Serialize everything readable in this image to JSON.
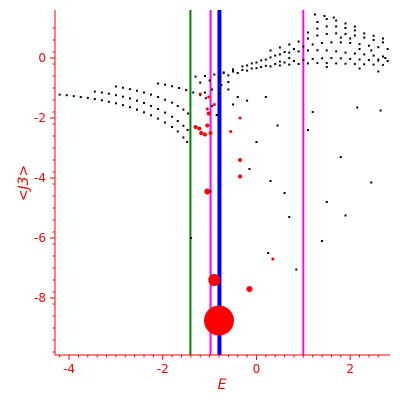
{
  "chart_data": {
    "type": "scatter",
    "xlabel": "E",
    "ylabel": "<J3>",
    "xlim": [
      -4.3,
      2.85
    ],
    "ylim": [
      -9.9,
      1.6
    ],
    "x_ticks": [
      -4,
      -2,
      0,
      2
    ],
    "x_tick_labels": [
      "-4",
      "-2",
      "0",
      "2"
    ],
    "y_ticks": [
      0,
      -2,
      -4,
      -6,
      -8
    ],
    "y_tick_labels": [
      "0",
      "-2",
      "-4",
      "-6",
      "-8"
    ],
    "grid": false,
    "colors": {
      "axis": "#ff0000",
      "points": "#000000",
      "highlight": "#ff0000",
      "green_line": "#008000",
      "magenta_line": "#ff00ff",
      "blue_line": "#0000ff"
    },
    "vertical_lines": [
      {
        "x": -1.41,
        "color": "#008000",
        "width": 2
      },
      {
        "x": -0.98,
        "color": "#ff00ff",
        "width": 2
      },
      {
        "x": -0.79,
        "color": "#0000ff",
        "width": 4
      },
      {
        "x": 1.0,
        "color": "#ff00ff",
        "width": 2
      }
    ],
    "black_points": [
      [
        -4.2,
        -1.22
      ],
      [
        -4.05,
        -1.24
      ],
      [
        -3.9,
        -1.27
      ],
      [
        -3.75,
        -1.3
      ],
      [
        -3.6,
        -1.33
      ],
      [
        -3.45,
        -1.37
      ],
      [
        -3.3,
        -1.41
      ],
      [
        -3.15,
        -1.46
      ],
      [
        -3.0,
        -1.51
      ],
      [
        -2.85,
        -1.57
      ],
      [
        -2.7,
        -1.64
      ],
      [
        -2.55,
        -1.72
      ],
      [
        -2.4,
        -1.81
      ],
      [
        -2.25,
        -1.91
      ],
      [
        -2.1,
        -2.02
      ],
      [
        -1.95,
        -2.15
      ],
      [
        -1.8,
        -2.3
      ],
      [
        -1.68,
        -2.45
      ],
      [
        -1.56,
        -2.65
      ],
      [
        -1.48,
        -2.8
      ],
      [
        -3.45,
        -1.12
      ],
      [
        -3.3,
        -1.15
      ],
      [
        -3.15,
        -1.19
      ],
      [
        -3.0,
        -1.24
      ],
      [
        -2.85,
        -1.29
      ],
      [
        -2.7,
        -1.35
      ],
      [
        -2.55,
        -1.42
      ],
      [
        -2.4,
        -1.5
      ],
      [
        -2.25,
        -1.6
      ],
      [
        -2.1,
        -1.7
      ],
      [
        -1.95,
        -1.82
      ],
      [
        -1.8,
        -1.96
      ],
      [
        -1.68,
        -2.1
      ],
      [
        -1.56,
        -2.26
      ],
      [
        -1.47,
        -2.4
      ],
      [
        -3.0,
        -0.95
      ],
      [
        -2.85,
        -0.99
      ],
      [
        -2.7,
        -1.04
      ],
      [
        -2.55,
        -1.09
      ],
      [
        -2.4,
        -1.15
      ],
      [
        -2.25,
        -1.22
      ],
      [
        -2.1,
        -1.3
      ],
      [
        -1.95,
        -1.39
      ],
      [
        -1.8,
        -1.49
      ],
      [
        -1.68,
        -1.6
      ],
      [
        -1.56,
        -1.72
      ],
      [
        -1.46,
        -1.85
      ],
      [
        -2.1,
        -0.85
      ],
      [
        -1.95,
        -0.89
      ],
      [
        -1.8,
        -0.94
      ],
      [
        -1.65,
        -1.0
      ],
      [
        -1.5,
        -1.07
      ],
      [
        -1.35,
        -1.15
      ],
      [
        -1.2,
        -1.24
      ],
      [
        -1.08,
        -1.34
      ],
      [
        -1.3,
        -0.62
      ],
      [
        -1.1,
        -0.6
      ],
      [
        -0.9,
        -0.55
      ],
      [
        -0.7,
        -0.5
      ],
      [
        -0.5,
        -0.45
      ],
      [
        -0.3,
        -0.4
      ],
      [
        -0.1,
        -0.35
      ],
      [
        0.1,
        -0.3
      ],
      [
        0.3,
        -0.28
      ],
      [
        0.5,
        -0.25
      ],
      [
        0.7,
        -0.22
      ],
      [
        0.9,
        -0.2
      ],
      [
        1.1,
        -0.18
      ],
      [
        1.3,
        -0.17
      ],
      [
        1.5,
        -0.17
      ],
      [
        1.7,
        -0.18
      ],
      [
        1.9,
        -0.19
      ],
      [
        2.1,
        -0.2
      ],
      [
        2.3,
        -0.21
      ],
      [
        2.5,
        -0.22
      ],
      [
        2.7,
        -0.23
      ],
      [
        -1.2,
        -0.82
      ],
      [
        -1.0,
        -0.75
      ],
      [
        -0.8,
        -0.66
      ],
      [
        -0.6,
        -0.58
      ],
      [
        -0.4,
        -0.5
      ],
      [
        -0.2,
        -0.42
      ],
      [
        0.0,
        -0.34
      ],
      [
        0.2,
        -0.26
      ],
      [
        0.4,
        -0.2
      ],
      [
        0.6,
        -0.15
      ],
      [
        0.8,
        -0.1
      ],
      [
        1.0,
        -0.06
      ],
      [
        1.2,
        -0.03
      ],
      [
        1.4,
        -0.01
      ],
      [
        1.6,
        0.0
      ],
      [
        1.8,
        -0.01
      ],
      [
        2.0,
        -0.03
      ],
      [
        2.2,
        -0.05
      ],
      [
        2.4,
        -0.07
      ],
      [
        2.6,
        -0.09
      ],
      [
        2.8,
        -0.1
      ],
      [
        -0.7,
        -0.48
      ],
      [
        -0.5,
        -0.38
      ],
      [
        -0.3,
        -0.28
      ],
      [
        -0.1,
        -0.18
      ],
      [
        0.1,
        -0.08
      ],
      [
        0.3,
        0.02
      ],
      [
        0.5,
        0.12
      ],
      [
        0.7,
        0.18
      ],
      [
        0.9,
        0.22
      ],
      [
        1.1,
        0.25
      ],
      [
        1.3,
        0.26
      ],
      [
        1.5,
        0.25
      ],
      [
        1.7,
        0.22
      ],
      [
        1.9,
        0.18
      ],
      [
        2.1,
        0.15
      ],
      [
        2.3,
        0.12
      ],
      [
        2.5,
        0.08
      ],
      [
        2.7,
        0.05
      ],
      [
        0.2,
        -0.05
      ],
      [
        0.4,
        0.08
      ],
      [
        0.6,
        0.2
      ],
      [
        0.8,
        0.3
      ],
      [
        1.0,
        0.38
      ],
      [
        1.2,
        0.45
      ],
      [
        1.4,
        0.5
      ],
      [
        1.6,
        0.52
      ],
      [
        1.8,
        0.52
      ],
      [
        2.0,
        0.5
      ],
      [
        2.2,
        0.46
      ],
      [
        2.4,
        0.41
      ],
      [
        2.6,
        0.36
      ],
      [
        2.8,
        0.3
      ],
      [
        0.9,
        0.55
      ],
      [
        1.1,
        0.65
      ],
      [
        1.3,
        0.75
      ],
      [
        1.5,
        0.8
      ],
      [
        1.7,
        0.82
      ],
      [
        1.9,
        0.8
      ],
      [
        2.1,
        0.75
      ],
      [
        2.3,
        0.68
      ],
      [
        2.5,
        0.6
      ],
      [
        2.7,
        0.52
      ],
      [
        1.1,
        0.85
      ],
      [
        1.3,
        0.98
      ],
      [
        1.5,
        1.05
      ],
      [
        1.7,
        1.05
      ],
      [
        1.9,
        1.0
      ],
      [
        2.1,
        0.92
      ],
      [
        2.3,
        0.82
      ],
      [
        2.5,
        0.74
      ],
      [
        2.7,
        0.65
      ],
      [
        1.3,
        1.2
      ],
      [
        1.5,
        1.3
      ],
      [
        1.7,
        1.25
      ],
      [
        1.9,
        1.15
      ],
      [
        2.1,
        1.05
      ],
      [
        1.25,
        1.45
      ],
      [
        1.45,
        1.4
      ],
      [
        1.65,
        1.35
      ],
      [
        0.5,
        0.35
      ],
      [
        0.7,
        0.45
      ],
      [
        0.3,
        0.25
      ],
      [
        0.0,
        -0.15
      ],
      [
        -0.2,
        -0.25
      ],
      [
        2.75,
        0.0
      ],
      [
        2.6,
        -0.05
      ],
      [
        2.45,
        0.25
      ],
      [
        2.2,
        0.3
      ],
      [
        2.0,
        0.65
      ],
      [
        1.8,
        0.68
      ],
      [
        0.7,
        0.0
      ],
      [
        0.5,
        -0.12
      ],
      [
        1.5,
        -0.3
      ],
      [
        2.2,
        -0.35
      ],
      [
        2.6,
        -0.45
      ],
      [
        -0.75,
        -0.9
      ],
      [
        -0.6,
        -1.05
      ],
      [
        -0.4,
        -1.3
      ],
      [
        -0.6,
        -0.8
      ],
      [
        2.65,
        -1.75
      ],
      [
        2.15,
        -1.65
      ],
      [
        1.2,
        -1.8
      ],
      [
        0.2,
        -1.3
      ],
      [
        -0.2,
        -1.42
      ],
      [
        -0.5,
        -1.55
      ],
      [
        0.45,
        -2.25
      ],
      [
        1.1,
        -2.4
      ],
      [
        0.0,
        -2.8
      ],
      [
        -0.15,
        -3.7
      ],
      [
        1.8,
        -3.3
      ],
      [
        0.3,
        -4.1
      ],
      [
        0.6,
        -4.5
      ],
      [
        2.45,
        -4.15
      ],
      [
        1.5,
        -4.8
      ],
      [
        1.9,
        -5.25
      ],
      [
        0.7,
        -5.3
      ],
      [
        1.4,
        -6.1
      ],
      [
        0.25,
        -6.5
      ],
      [
        0.85,
        -7.05
      ],
      [
        -0.98,
        -4.45
      ],
      [
        -1.4,
        -6.0
      ],
      [
        -0.95,
        -1.6
      ],
      [
        -0.85,
        -1.9
      ],
      [
        -1.1,
        -1.15
      ],
      [
        -0.95,
        -1.05
      ],
      [
        -0.8,
        -1.2
      ]
    ],
    "red_points": [
      {
        "x": -1.2,
        "y": -1.2,
        "r": 1.5
      },
      {
        "x": -1.02,
        "y": -1.3,
        "r": 1.5
      },
      {
        "x": -1.05,
        "y": -1.7,
        "r": 1.5
      },
      {
        "x": -0.9,
        "y": -1.55,
        "r": 1.5
      },
      {
        "x": -1.02,
        "y": -1.85,
        "r": 2
      },
      {
        "x": -1.3,
        "y": -2.3,
        "r": 2
      },
      {
        "x": -1.22,
        "y": -2.35,
        "r": 2
      },
      {
        "x": -1.18,
        "y": -2.5,
        "r": 2
      },
      {
        "x": -1.1,
        "y": -2.55,
        "r": 2
      },
      {
        "x": -1.05,
        "y": -2.25,
        "r": 2
      },
      {
        "x": -0.98,
        "y": -2.5,
        "r": 2
      },
      {
        "x": -0.55,
        "y": -2.45,
        "r": 1.5
      },
      {
        "x": -0.35,
        "y": -2.0,
        "r": 1.5
      },
      {
        "x": -0.35,
        "y": -3.4,
        "r": 2
      },
      {
        "x": -0.35,
        "y": -3.95,
        "r": 2
      },
      {
        "x": -1.05,
        "y": -4.45,
        "r": 3
      },
      {
        "x": 0.35,
        "y": -6.7,
        "r": 1.5
      },
      {
        "x": -0.9,
        "y": -7.4,
        "r": 6
      },
      {
        "x": -0.15,
        "y": -7.7,
        "r": 3
      },
      {
        "x": -0.8,
        "y": -8.75,
        "r": 15
      }
    ]
  }
}
